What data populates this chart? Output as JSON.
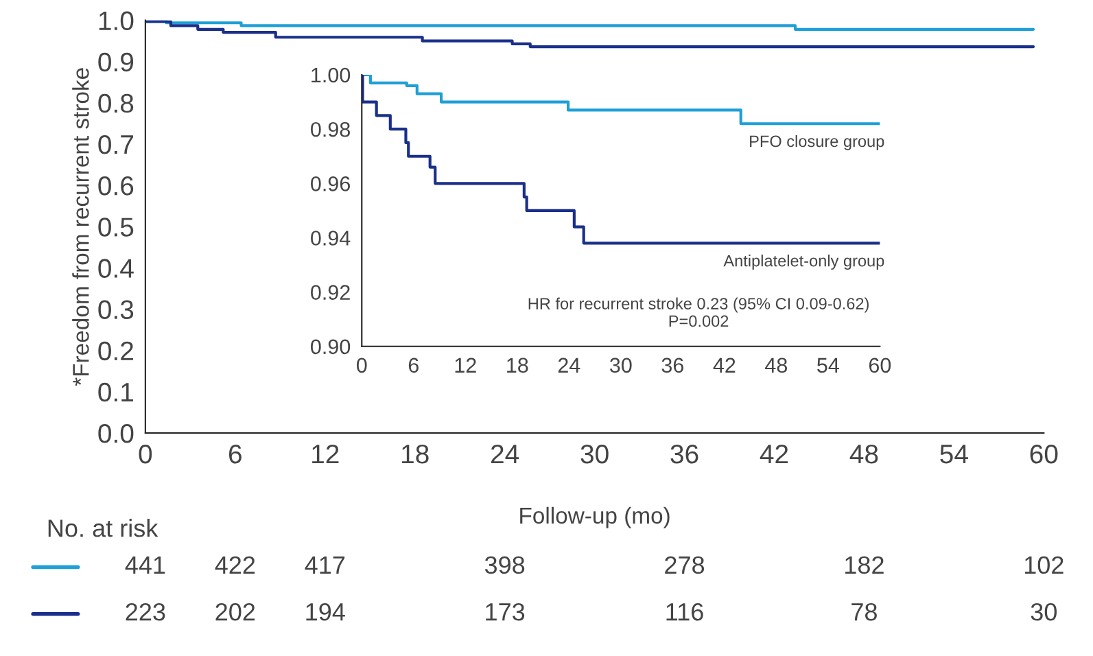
{
  "chart_data": [
    {
      "type": "step",
      "xlabel": "Follow-up (mo)",
      "ylabel": "*Freedom from recurrent stroke",
      "xlim": [
        0,
        60
      ],
      "ylim": [
        0,
        1.0
      ],
      "xticks": [
        0,
        6,
        12,
        18,
        24,
        30,
        36,
        42,
        48,
        54,
        60
      ],
      "yticks": [
        {
          "value": 0,
          "label": "0.0"
        },
        0.1,
        0.2,
        0.3,
        0.4,
        0.5,
        0.6,
        0.7,
        0.8,
        0.9,
        {
          "value": 1,
          "label": "1.0"
        }
      ],
      "grid": false,
      "legend": false,
      "series": [
        {
          "color": "#1e9fd6",
          "x": [
            0,
            1.4,
            6.4,
            43.4,
            59.3
          ],
          "values": [
            1.0,
            0.994,
            0.987,
            0.978,
            0.978
          ]
        },
        {
          "color": "#1a2f8a",
          "x": [
            0,
            1.7,
            3.5,
            5.2,
            8.7,
            18.5,
            24.5,
            25.7,
            59.3
          ],
          "values": [
            0.997,
            0.987,
            0.978,
            0.971,
            0.959,
            0.95,
            0.943,
            0.936,
            0.936
          ]
        }
      ]
    },
    {
      "type": "step",
      "xlim": [
        0,
        60
      ],
      "ylim": [
        0.9,
        1.0
      ],
      "xticks": [
        0,
        6,
        12,
        18,
        24,
        30,
        36,
        42,
        48,
        54,
        60
      ],
      "yticks": [
        {
          "value": 0.9,
          "label": "0.90"
        },
        {
          "value": 0.92,
          "label": "0.92"
        },
        {
          "value": 0.94,
          "label": "0.94"
        },
        {
          "value": 0.96,
          "label": "0.96"
        },
        {
          "value": 0.98,
          "label": "0.98"
        },
        {
          "value": 1.0,
          "label": "1.00"
        }
      ],
      "grid": false,
      "legend": false,
      "annotations": [
        "HR for recurrent stroke 0.23 (95% CI 0.09-0.62)\nP=0.002"
      ],
      "series": [
        {
          "name": "PFO closure group",
          "color": "#1e9fd6",
          "x": [
            0,
            1,
            5.2,
            6.4,
            9.2,
            23.9,
            43.9,
            60
          ],
          "values": [
            1.0,
            0.997,
            0.996,
            0.993,
            0.99,
            0.987,
            0.982,
            0.982
          ]
        },
        {
          "name": "Antiplatelet-only group",
          "color": "#1a2f8a",
          "x": [
            0,
            0.1,
            1.7,
            3.3,
            5.1,
            5.4,
            7.9,
            8.5,
            18.8,
            19.1,
            24.6,
            25.7,
            60
          ],
          "values": [
            1.0,
            0.99,
            0.985,
            0.98,
            0.975,
            0.97,
            0.966,
            0.96,
            0.955,
            0.95,
            0.944,
            0.938,
            0.938
          ]
        }
      ]
    },
    {
      "type": "other",
      "title": "No. at risk",
      "colors": [
        "#1e9fd6",
        "#1a2f8a"
      ],
      "annotations": [
        "441",
        "422",
        "417",
        "398",
        "278",
        "182",
        "102",
        "223",
        "202",
        "194",
        "173",
        "116",
        "78",
        "30"
      ]
    }
  ]
}
